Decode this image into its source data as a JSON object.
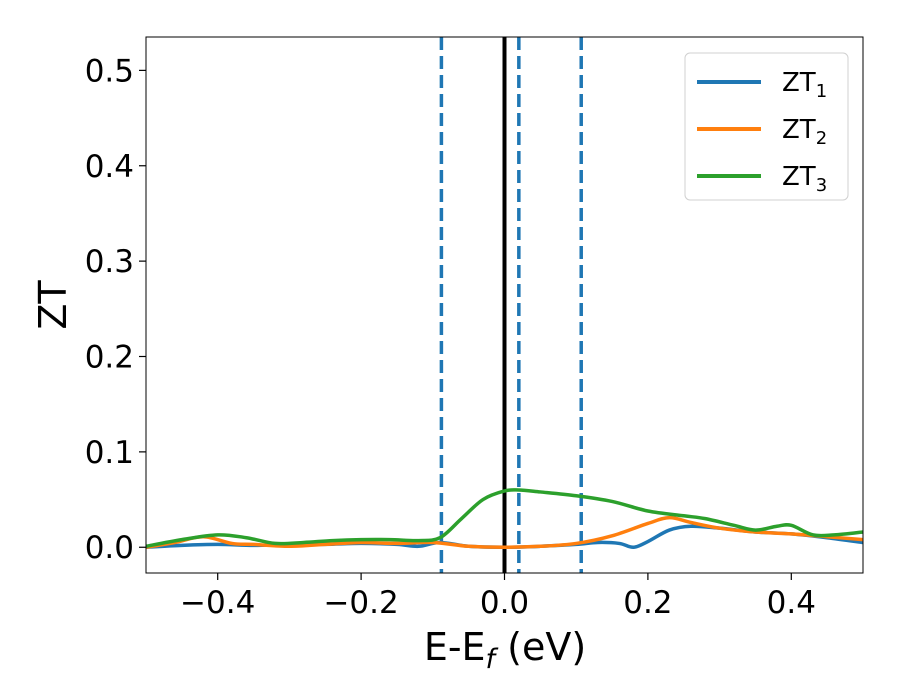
{
  "chart_data": {
    "type": "line",
    "xlabel": "E-E",
    "xlabel_sub": "f",
    "xlabel_unit": " (eV)",
    "ylabel": "ZT",
    "xlim": [
      -0.5,
      0.5
    ],
    "ylim": [
      -0.027,
      0.535
    ],
    "x_ticks": [
      -0.4,
      -0.2,
      0.0,
      0.2,
      0.4
    ],
    "x_tick_labels": [
      "−0.4",
      "−0.2",
      "0.0",
      "0.2",
      "0.4"
    ],
    "y_ticks": [
      0.0,
      0.1,
      0.2,
      0.3,
      0.4,
      0.5
    ],
    "y_tick_labels": [
      "0.0",
      "0.1",
      "0.2",
      "0.3",
      "0.4",
      "0.5"
    ],
    "grid": false,
    "legend_position": "top-right",
    "vlines": [
      {
        "x": -0.088,
        "style": "dashed",
        "color": "#1f77b4"
      },
      {
        "x": 0.0,
        "style": "solid",
        "color": "#000000"
      },
      {
        "x": 0.02,
        "style": "dashed",
        "color": "#1f77b4"
      },
      {
        "x": 0.107,
        "style": "dashed",
        "color": "#1f77b4"
      }
    ],
    "series": [
      {
        "name": "ZT",
        "name_sub": "1",
        "color": "#1f77b4",
        "x": [
          -0.5,
          -0.45,
          -0.4,
          -0.35,
          -0.3,
          -0.25,
          -0.2,
          -0.15,
          -0.12,
          -0.09,
          -0.05,
          0.0,
          0.05,
          0.1,
          0.13,
          0.16,
          0.18,
          0.2,
          0.23,
          0.26,
          0.3,
          0.35,
          0.4,
          0.45,
          0.5
        ],
        "y": [
          0.0,
          0.002,
          0.003,
          0.002,
          0.003,
          0.003,
          0.004,
          0.003,
          0.001,
          0.005,
          0.001,
          0.0,
          0.001,
          0.003,
          0.005,
          0.004,
          0.0,
          0.006,
          0.018,
          0.022,
          0.02,
          0.016,
          0.014,
          0.01,
          0.005
        ]
      },
      {
        "name": "ZT",
        "name_sub": "2",
        "color": "#ff7f0e",
        "x": [
          -0.5,
          -0.46,
          -0.42,
          -0.38,
          -0.35,
          -0.3,
          -0.25,
          -0.2,
          -0.15,
          -0.1,
          -0.05,
          0.0,
          0.05,
          0.1,
          0.15,
          0.2,
          0.23,
          0.26,
          0.3,
          0.35,
          0.4,
          0.45,
          0.5
        ],
        "y": [
          0.0,
          0.005,
          0.011,
          0.004,
          0.003,
          0.001,
          0.003,
          0.005,
          0.004,
          0.005,
          0.001,
          0.0,
          0.001,
          0.004,
          0.012,
          0.025,
          0.031,
          0.026,
          0.02,
          0.016,
          0.014,
          0.011,
          0.008
        ]
      },
      {
        "name": "ZT",
        "name_sub": "3",
        "color": "#2ca02c",
        "x": [
          -0.5,
          -0.45,
          -0.4,
          -0.36,
          -0.32,
          -0.28,
          -0.24,
          -0.2,
          -0.16,
          -0.12,
          -0.09,
          -0.06,
          -0.03,
          0.0,
          0.02,
          0.05,
          0.1,
          0.15,
          0.2,
          0.25,
          0.28,
          0.32,
          0.35,
          0.38,
          0.4,
          0.43,
          0.46,
          0.5
        ],
        "y": [
          0.001,
          0.008,
          0.013,
          0.01,
          0.004,
          0.005,
          0.007,
          0.008,
          0.008,
          0.007,
          0.01,
          0.03,
          0.05,
          0.059,
          0.06,
          0.058,
          0.054,
          0.048,
          0.038,
          0.033,
          0.03,
          0.023,
          0.018,
          0.022,
          0.023,
          0.013,
          0.013,
          0.016
        ]
      }
    ]
  }
}
